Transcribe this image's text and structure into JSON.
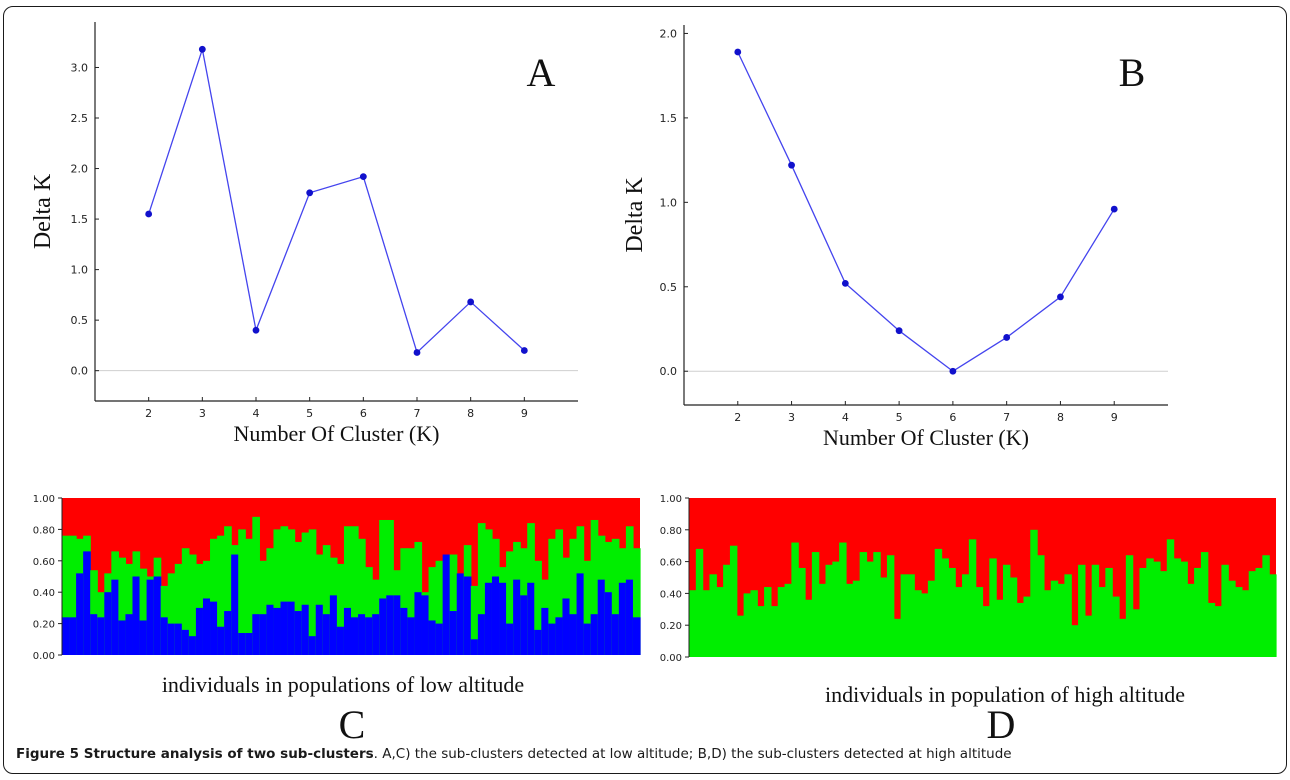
{
  "chart_data": [
    {
      "id": "A",
      "type": "line",
      "panel_letter": "A",
      "x": [
        2,
        3,
        4,
        5,
        6,
        7,
        8,
        9
      ],
      "series": [
        {
          "values": [
            1.55,
            3.18,
            0.4,
            1.76,
            1.92,
            0.18,
            0.68,
            0.2
          ]
        }
      ],
      "xlabel": "Number Of Cluster (K)",
      "ylabel": "Delta K",
      "xticks": [
        "2",
        "3",
        "4",
        "5",
        "6",
        "7",
        "8",
        "9"
      ],
      "yticks": [
        "0.0",
        "0.5",
        "1.0",
        "1.5",
        "2.0",
        "2.5",
        "3.0"
      ],
      "xlim": [
        1.0,
        10.0
      ],
      "ylim": [
        -0.3,
        3.45
      ],
      "line_color": "#4444ee"
    },
    {
      "id": "B",
      "type": "line",
      "panel_letter": "B",
      "x": [
        2,
        3,
        4,
        5,
        6,
        7,
        8,
        9
      ],
      "series": [
        {
          "values": [
            1.89,
            1.22,
            0.52,
            0.24,
            0.0,
            0.2,
            0.44,
            0.96
          ]
        }
      ],
      "xlabel": "Number Of Cluster (K)",
      "ylabel": "Delta K",
      "xticks": [
        "2",
        "3",
        "4",
        "5",
        "6",
        "7",
        "8",
        "9"
      ],
      "yticks": [
        "0.0",
        "0.5",
        "1.0",
        "1.5",
        "2.0"
      ],
      "xlim": [
        1.0,
        10.0
      ],
      "ylim": [
        -0.2,
        2.05
      ],
      "line_color": "#4444ee"
    },
    {
      "id": "C",
      "type": "bar",
      "stacked": true,
      "panel_letter": "C",
      "xlabel": "individuals in populations of low altitude",
      "yticks": [
        "0.00",
        "0.20",
        "0.40",
        "0.60",
        "0.80",
        "1.00"
      ],
      "ylim": [
        0,
        1
      ],
      "colors": [
        "#0000ff",
        "#00ee00",
        "#ff0000"
      ],
      "blue": [
        0.24,
        0.24,
        0.52,
        0.66,
        0.26,
        0.24,
        0.4,
        0.48,
        0.22,
        0.26,
        0.5,
        0.22,
        0.48,
        0.5,
        0.24,
        0.2,
        0.2,
        0.16,
        0.12,
        0.3,
        0.36,
        0.34,
        0.18,
        0.28,
        0.64,
        0.14,
        0.14,
        0.26,
        0.26,
        0.32,
        0.3,
        0.34,
        0.34,
        0.28,
        0.32,
        0.12,
        0.32,
        0.26,
        0.38,
        0.18,
        0.3,
        0.24,
        0.26,
        0.24,
        0.26,
        0.36,
        0.38,
        0.38,
        0.3,
        0.24,
        0.4,
        0.38,
        0.22,
        0.2,
        0.64,
        0.28,
        0.52,
        0.5,
        0.1,
        0.26,
        0.46,
        0.5,
        0.46,
        0.2,
        0.48,
        0.38,
        0.46,
        0.16,
        0.3,
        0.2,
        0.24,
        0.36,
        0.26,
        0.52,
        0.2,
        0.26,
        0.48,
        0.4,
        0.26,
        0.46,
        0.48,
        0.24
      ],
      "green": [
        0.76,
        0.76,
        0.74,
        0.76,
        0.54,
        0.4,
        0.52,
        0.66,
        0.62,
        0.58,
        0.66,
        0.55,
        0.5,
        0.62,
        0.44,
        0.52,
        0.58,
        0.68,
        0.64,
        0.58,
        0.6,
        0.74,
        0.76,
        0.82,
        0.7,
        0.8,
        0.74,
        0.88,
        0.6,
        0.68,
        0.8,
        0.82,
        0.8,
        0.72,
        0.78,
        0.8,
        0.64,
        0.7,
        0.62,
        0.58,
        0.82,
        0.82,
        0.74,
        0.56,
        0.48,
        0.86,
        0.86,
        0.54,
        0.68,
        0.68,
        0.72,
        0.4,
        0.56,
        0.6,
        0.58,
        0.64,
        0.44,
        0.7,
        0.44,
        0.84,
        0.8,
        0.74,
        0.56,
        0.66,
        0.72,
        0.68,
        0.84,
        0.6,
        0.48,
        0.74,
        0.8,
        0.62,
        0.74,
        0.82,
        0.6,
        0.86,
        0.76,
        0.72,
        0.74,
        0.68,
        0.82,
        0.68
      ],
      "n_individuals": 82
    },
    {
      "id": "D",
      "type": "bar",
      "stacked": true,
      "panel_letter": "D",
      "xlabel": "individuals in population of high altitude",
      "yticks": [
        "0.00",
        "0.20",
        "0.40",
        "0.60",
        "0.80",
        "1.00"
      ],
      "ylim": [
        0,
        1
      ],
      "colors": [
        "#00ee00",
        "#ff0000"
      ],
      "green": [
        0.42,
        0.68,
        0.42,
        0.52,
        0.44,
        0.58,
        0.7,
        0.26,
        0.4,
        0.42,
        0.32,
        0.44,
        0.32,
        0.44,
        0.46,
        0.72,
        0.56,
        0.36,
        0.66,
        0.46,
        0.58,
        0.6,
        0.72,
        0.46,
        0.48,
        0.66,
        0.6,
        0.66,
        0.5,
        0.64,
        0.24,
        0.52,
        0.52,
        0.42,
        0.4,
        0.48,
        0.68,
        0.62,
        0.56,
        0.44,
        0.52,
        0.74,
        0.44,
        0.32,
        0.62,
        0.36,
        0.58,
        0.5,
        0.34,
        0.38,
        0.8,
        0.64,
        0.42,
        0.48,
        0.46,
        0.52,
        0.2,
        0.58,
        0.26,
        0.58,
        0.44,
        0.56,
        0.38,
        0.24,
        0.64,
        0.3,
        0.56,
        0.62,
        0.6,
        0.54,
        0.74,
        0.62,
        0.6,
        0.46,
        0.56,
        0.66,
        0.34,
        0.32,
        0.58,
        0.48,
        0.44,
        0.42,
        0.54,
        0.56,
        0.64,
        0.52
      ],
      "n_individuals": 86
    }
  ],
  "caption": {
    "title": "Figure 5 Structure analysis of two sub-clusters",
    "text": ". A,C) the sub-clusters detected at low altitude; B,D) the sub-clusters detected at high altitude"
  }
}
